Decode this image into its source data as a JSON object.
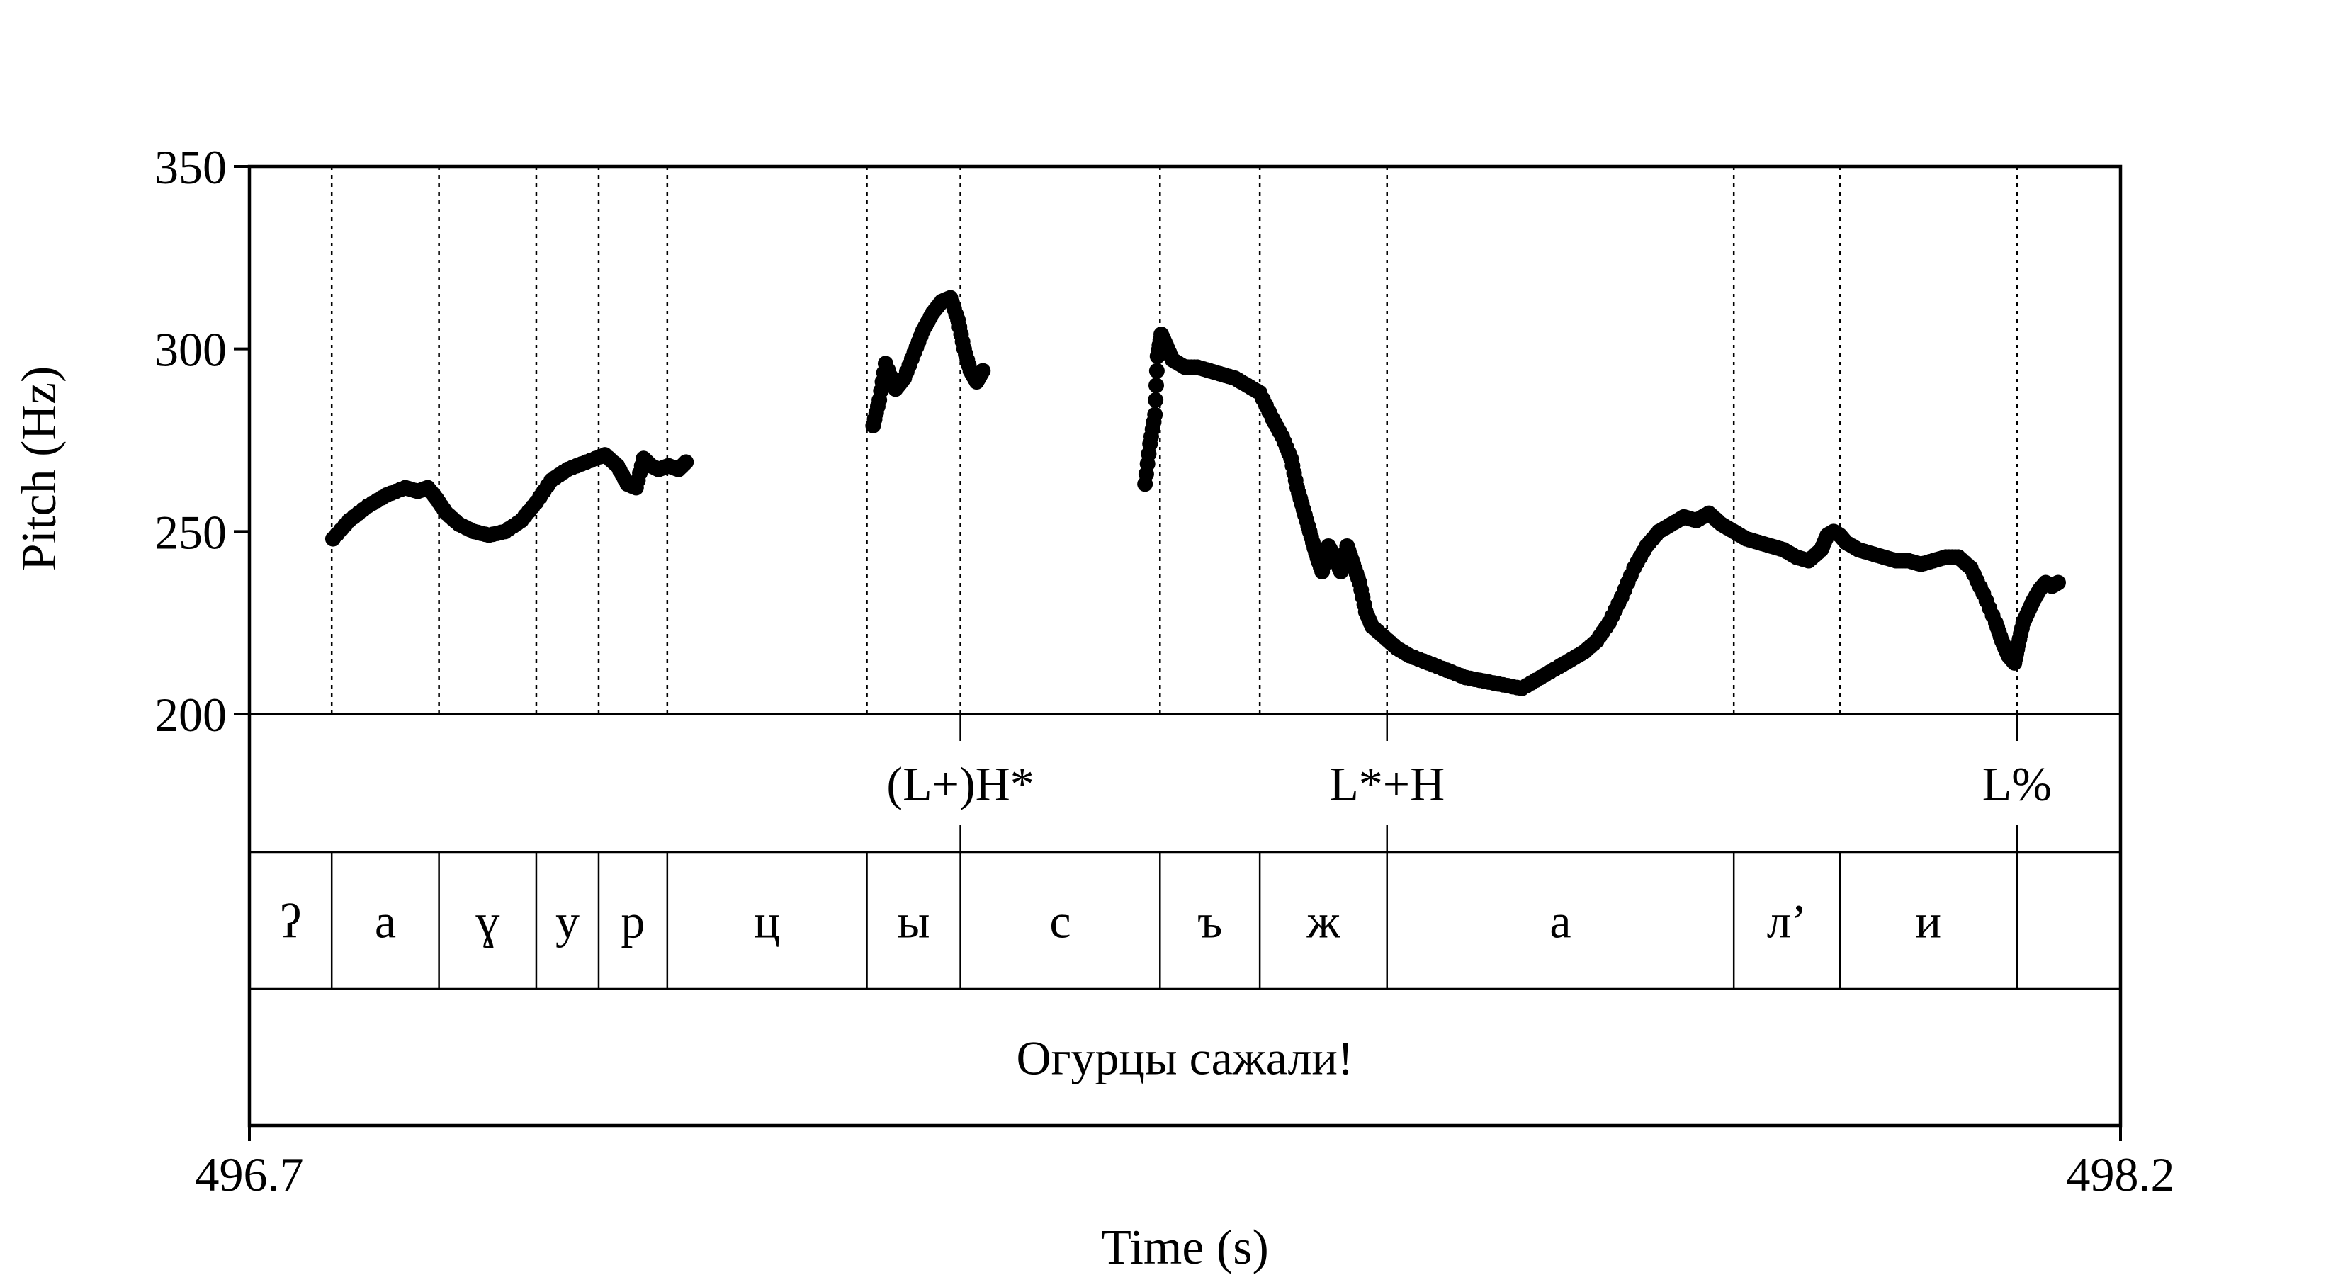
{
  "chart_data": {
    "type": "scatter",
    "xlabel": "Time (s)",
    "ylabel": "Pitch (Hz)",
    "xlim": [
      496.7,
      498.2
    ],
    "ylim": [
      200,
      350
    ],
    "x_ticks": [
      "496.7",
      "498.2"
    ],
    "y_ticks": [
      200,
      250,
      300,
      350
    ],
    "boundaries": [
      496.766,
      496.852,
      496.93,
      496.98,
      497.035,
      497.195,
      497.27,
      497.43,
      497.51,
      497.612,
      497.89,
      497.975,
      498.117
    ],
    "tones": [
      {
        "t": 497.27,
        "label": "(L+)H*"
      },
      {
        "t": 497.612,
        "label": "L*+H"
      },
      {
        "t": 498.117,
        "label": "L%"
      }
    ],
    "segments": [
      {
        "start": 496.7,
        "end": 496.766,
        "label": "ʔ"
      },
      {
        "start": 496.766,
        "end": 496.852,
        "label": "а"
      },
      {
        "start": 496.852,
        "end": 496.93,
        "label": "ɣ"
      },
      {
        "start": 496.93,
        "end": 496.98,
        "label": "у"
      },
      {
        "start": 496.98,
        "end": 497.035,
        "label": "р"
      },
      {
        "start": 497.035,
        "end": 497.195,
        "label": "ц"
      },
      {
        "start": 497.195,
        "end": 497.27,
        "label": "ы"
      },
      {
        "start": 497.27,
        "end": 497.43,
        "label": "с"
      },
      {
        "start": 497.43,
        "end": 497.51,
        "label": "ъ"
      },
      {
        "start": 497.51,
        "end": 497.612,
        "label": "ж"
      },
      {
        "start": 497.612,
        "end": 497.89,
        "label": "а"
      },
      {
        "start": 497.89,
        "end": 497.975,
        "label": "л’"
      },
      {
        "start": 497.975,
        "end": 498.117,
        "label": "и"
      },
      {
        "start": 498.117,
        "end": 498.2,
        "label": ""
      }
    ],
    "sentence": "Огурцы сажали!",
    "series": [
      {
        "x": [
          496.767,
          496.78,
          496.795,
          496.81,
          496.825,
          496.835,
          496.843,
          496.85,
          496.858,
          496.868,
          496.88,
          496.892,
          496.905,
          496.918,
          496.93,
          496.942,
          496.955,
          496.97,
          496.985,
          496.995,
          497.003,
          497.01,
          497.016,
          497.022,
          497.028,
          497.036,
          497.044,
          497.05
        ],
        "y": [
          248,
          253,
          257,
          260,
          262,
          261,
          262,
          259,
          255,
          252,
          250,
          249,
          250,
          253,
          258,
          264,
          267,
          269,
          271,
          268,
          263,
          262,
          270,
          268,
          267,
          268,
          267,
          269
        ]
      },
      {
        "x": [
          497.2,
          497.205,
          497.21,
          497.218,
          497.225,
          497.233,
          497.24,
          497.248,
          497.255,
          497.262,
          497.268,
          497.273,
          497.278,
          497.283,
          497.288
        ],
        "y": [
          279,
          286,
          296,
          289,
          292,
          299,
          305,
          310,
          313,
          314,
          308,
          300,
          294,
          291,
          294
        ]
      },
      {
        "x": [
          497.418,
          497.422,
          497.426,
          497.428,
          497.431,
          497.435,
          497.44,
          497.45,
          497.46,
          497.47,
          497.48,
          497.49,
          497.5,
          497.51,
          497.52,
          497.528,
          497.535,
          497.54,
          497.545,
          497.55,
          497.555,
          497.56,
          497.565,
          497.57,
          497.575,
          497.58,
          497.585,
          497.59,
          497.595,
          497.6,
          497.61,
          497.62,
          497.63,
          497.645,
          497.66,
          497.675,
          497.69,
          497.705,
          497.72,
          497.735,
          497.75,
          497.76,
          497.77,
          497.78,
          497.79,
          497.8,
          497.81,
          497.82,
          497.83,
          497.84,
          497.85,
          497.86,
          497.87,
          497.88,
          497.89,
          497.9,
          497.91,
          497.92,
          497.93,
          497.94,
          497.95,
          497.96,
          497.965,
          497.97,
          497.975,
          497.98,
          497.99,
          498.0,
          498.01,
          498.02,
          498.03,
          498.04,
          498.05,
          498.06,
          498.07,
          498.08,
          498.09,
          498.1,
          498.105,
          498.11,
          498.115,
          498.118,
          498.122,
          498.126,
          498.13,
          498.135,
          498.14,
          498.145,
          498.15
        ],
        "y": [
          263,
          274,
          282,
          298,
          304,
          301,
          297,
          295,
          295,
          294,
          293,
          292,
          290,
          288,
          281,
          276,
          270,
          262,
          256,
          250,
          244,
          239,
          246,
          243,
          239,
          246,
          241,
          236,
          228,
          224,
          221,
          218,
          216,
          214,
          212,
          210,
          209,
          208,
          207,
          210,
          213,
          215,
          217,
          220,
          225,
          232,
          240,
          246,
          250,
          252,
          254,
          253,
          255,
          252,
          250,
          248,
          247,
          246,
          245,
          243,
          242,
          245,
          249,
          250,
          249,
          247,
          245,
          244,
          243,
          242,
          242,
          241,
          242,
          243,
          243,
          240,
          233,
          225,
          220,
          216,
          214,
          219,
          225,
          228,
          231,
          234,
          236,
          235,
          236
        ]
      }
    ]
  }
}
